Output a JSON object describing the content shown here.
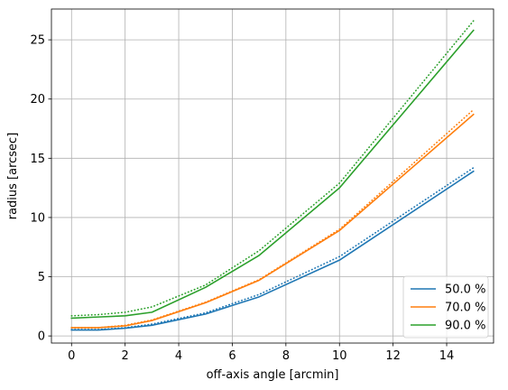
{
  "chart_data": {
    "type": "line",
    "title": "",
    "xlabel": "off-axis angle [arcmin]",
    "ylabel": "radius [arcsec]",
    "xlim": [
      -0.75,
      15.75
    ],
    "ylim": [
      -0.6,
      27.6
    ],
    "xticks": [
      0,
      2,
      4,
      6,
      8,
      10,
      12,
      14
    ],
    "yticks": [
      0,
      5,
      10,
      15,
      20,
      25
    ],
    "grid": true,
    "legend_position": "lower-right",
    "x": [
      0,
      1,
      2,
      3,
      5,
      7,
      10,
      15
    ],
    "series": [
      {
        "name": "50.0 %",
        "style": "solid",
        "color": "#1f77b4",
        "values": [
          0.5,
          0.5,
          0.65,
          0.9,
          1.85,
          3.3,
          6.4,
          13.9
        ]
      },
      {
        "name": "",
        "style": "dotted",
        "color": "#1f77b4",
        "values": [
          0.55,
          0.55,
          0.7,
          1.0,
          1.95,
          3.5,
          6.7,
          14.2
        ]
      },
      {
        "name": "70.0 %",
        "style": "solid",
        "color": "#ff7f0e",
        "values": [
          0.7,
          0.7,
          0.85,
          1.3,
          2.8,
          4.7,
          8.9,
          18.7
        ]
      },
      {
        "name": "",
        "style": "dotted",
        "color": "#ff7f0e",
        "values": [
          0.7,
          0.7,
          0.9,
          1.35,
          2.85,
          4.75,
          9.0,
          19.1
        ]
      },
      {
        "name": "90.0 %",
        "style": "solid",
        "color": "#2ca02c",
        "values": [
          1.5,
          1.6,
          1.7,
          2.0,
          4.1,
          6.8,
          12.5,
          25.8
        ]
      },
      {
        "name": "",
        "style": "dotted",
        "color": "#2ca02c",
        "values": [
          1.7,
          1.8,
          2.0,
          2.45,
          4.3,
          7.2,
          12.9,
          26.6
        ]
      }
    ]
  }
}
